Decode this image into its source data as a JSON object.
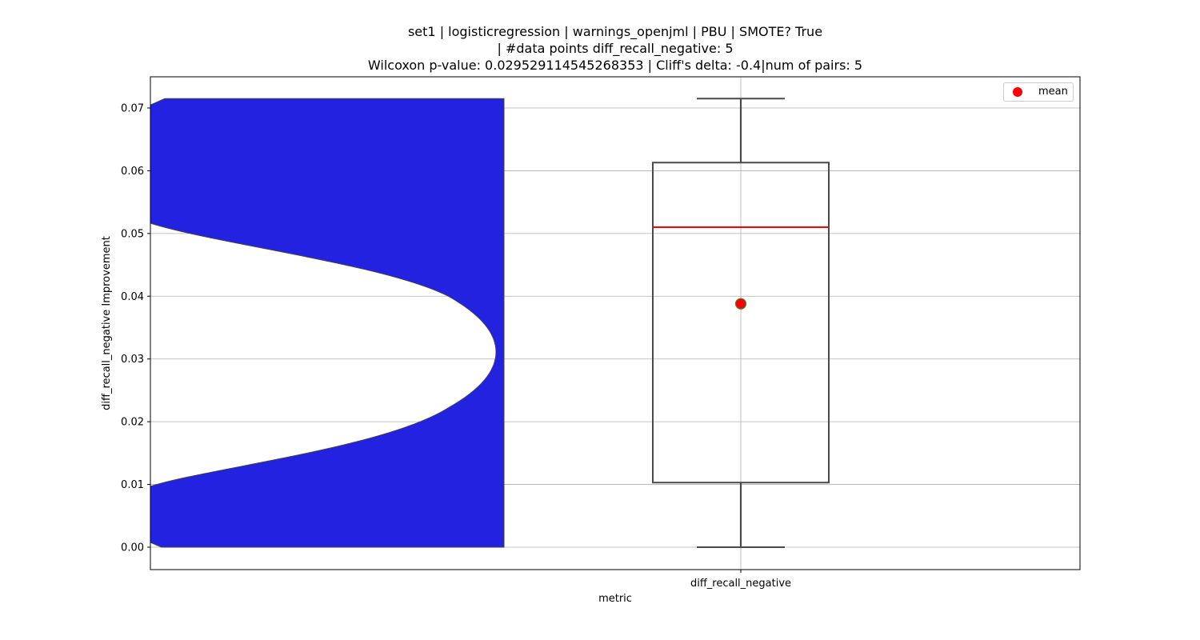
{
  "title": {
    "line1": "set1 | logisticregression | warnings_openjml | PBU | SMOTE? True",
    "line2": "| #data points diff_recall_negative: 5",
    "line3": "Wilcoxon p-value: 0.029529114545268353 | Cliff's delta: -0.4|num of pairs: 5"
  },
  "legend": {
    "label": "mean",
    "color": "#ff0000"
  },
  "chart_data": {
    "type": "box",
    "xlabel": "metric",
    "ylabel": "diff_recall_negative Improvement",
    "categories": [
      "diff_recall_negative"
    ],
    "ylim": [
      -0.0035,
      0.075
    ],
    "yticks": [
      "0.00",
      "0.01",
      "0.02",
      "0.03",
      "0.04",
      "0.05",
      "0.06",
      "0.07"
    ],
    "grid": true,
    "legend_position": "top-right",
    "box": {
      "whisker_low": 0.0,
      "q1": 0.0103,
      "median": 0.051,
      "q3": 0.0613,
      "whisker_high": 0.0715,
      "mean": 0.0388
    },
    "violin_fill": "#2222e0",
    "median_color": "#ff0000",
    "mean_color": "#ff0000"
  }
}
